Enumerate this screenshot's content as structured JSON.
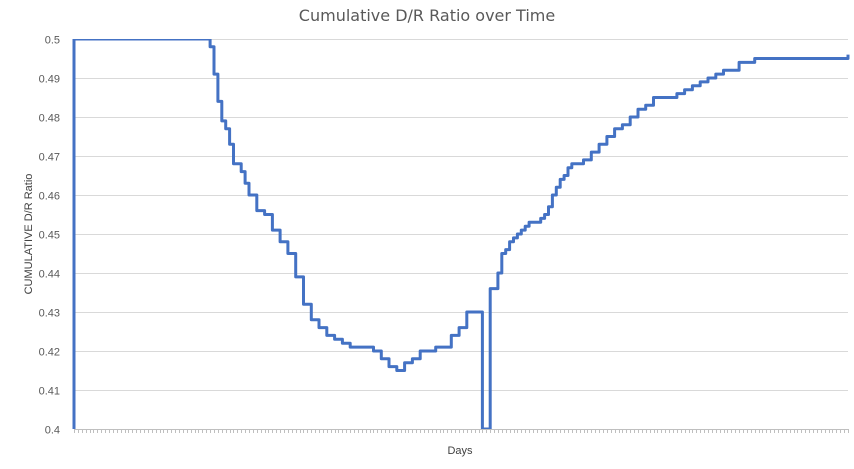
{
  "chart_data": {
    "type": "line",
    "title": "Cumulative D/R Ratio over Time",
    "xlabel": "Days",
    "ylabel": "CUMULATIVE D/R Ratio",
    "ylim": [
      0.4,
      0.5
    ],
    "yticks": [
      "0.4",
      "0.41",
      "0.42",
      "0.43",
      "0.44",
      "0.45",
      "0.46",
      "0.47",
      "0.48",
      "0.49",
      "0.5"
    ],
    "x_range": [
      1,
      200
    ],
    "grid": true,
    "legend": "none",
    "series": [
      {
        "color": "#4472c4",
        "x": [
          1,
          1,
          2,
          35,
          36,
          37,
          38,
          39,
          40,
          41,
          42,
          44,
          45,
          46,
          48,
          50,
          52,
          54,
          56,
          58,
          60,
          62,
          64,
          66,
          68,
          70,
          72,
          74,
          76,
          78,
          80,
          82,
          84,
          86,
          88,
          90,
          92,
          94,
          96,
          98,
          100,
          102,
          104,
          106,
          108,
          110,
          111,
          112,
          113,
          114,
          115,
          116,
          117,
          118,
          119,
          120,
          121,
          122,
          123,
          124,
          125,
          126,
          127,
          128,
          129,
          130,
          132,
          134,
          136,
          138,
          140,
          142,
          144,
          146,
          148,
          150,
          152,
          154,
          156,
          158,
          160,
          162,
          164,
          166,
          168,
          170,
          172,
          174,
          176,
          178,
          180,
          182,
          184,
          186,
          188,
          190,
          192,
          194,
          196,
          198,
          199,
          200
        ],
        "y": [
          0.4,
          0.5,
          0.5,
          0.5,
          0.498,
          0.491,
          0.484,
          0.479,
          0.477,
          0.473,
          0.468,
          0.466,
          0.463,
          0.46,
          0.456,
          0.455,
          0.451,
          0.448,
          0.445,
          0.439,
          0.432,
          0.428,
          0.426,
          0.424,
          0.423,
          0.422,
          0.421,
          0.421,
          0.421,
          0.42,
          0.418,
          0.416,
          0.415,
          0.417,
          0.418,
          0.42,
          0.42,
          0.421,
          0.421,
          0.424,
          0.426,
          0.43,
          0.43,
          0.4,
          0.436,
          0.44,
          0.445,
          0.446,
          0.448,
          0.449,
          0.45,
          0.451,
          0.452,
          0.453,
          0.453,
          0.453,
          0.454,
          0.455,
          0.457,
          0.46,
          0.462,
          0.464,
          0.465,
          0.467,
          0.468,
          0.468,
          0.469,
          0.471,
          0.473,
          0.475,
          0.477,
          0.478,
          0.48,
          0.482,
          0.483,
          0.485,
          0.485,
          0.485,
          0.486,
          0.487,
          0.488,
          0.489,
          0.49,
          0.491,
          0.492,
          0.492,
          0.494,
          0.494,
          0.495,
          0.495,
          0.495,
          0.495,
          0.495,
          0.495,
          0.495,
          0.495,
          0.495,
          0.495,
          0.495,
          0.495,
          0.495,
          0.496
        ]
      }
    ]
  }
}
